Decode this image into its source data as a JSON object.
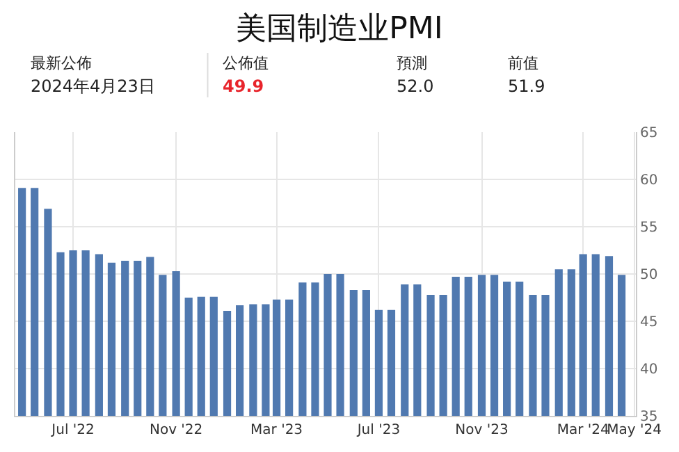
{
  "chart_data": {
    "type": "bar",
    "title": "美国制造业PMI",
    "annotations": [
      "最新公佈",
      "2024年4月23日",
      "公佈值",
      "49.9",
      "預測",
      "52.0",
      "前值",
      "51.9"
    ],
    "x": [
      "2022-05-01",
      "2022-05-16",
      "2022-06-01",
      "2022-06-16",
      "2022-07-01",
      "2022-07-16",
      "2022-08-01",
      "2022-08-16",
      "2022-09-01",
      "2022-09-16",
      "2022-10-01",
      "2022-10-16",
      "2022-11-01",
      "2022-11-16",
      "2022-12-01",
      "2022-12-16",
      "2023-01-01",
      "2023-01-16",
      "2023-02-01",
      "2023-02-16",
      "2023-03-01",
      "2023-03-16",
      "2023-04-01",
      "2023-04-16",
      "2023-05-01",
      "2023-05-16",
      "2023-06-01",
      "2023-06-16",
      "2023-07-01",
      "2023-07-16",
      "2023-08-01",
      "2023-08-16",
      "2023-09-01",
      "2023-09-16",
      "2023-10-01",
      "2023-10-16",
      "2023-11-01",
      "2023-11-16",
      "2023-12-01",
      "2023-12-16",
      "2024-01-01",
      "2024-01-16",
      "2024-02-01",
      "2024-02-16",
      "2024-03-01",
      "2024-03-16",
      "2024-04-01",
      "2024-04-16"
    ],
    "values": [
      59.1,
      59.1,
      56.9,
      52.3,
      52.5,
      52.5,
      52.1,
      51.2,
      51.4,
      51.4,
      51.8,
      49.9,
      50.3,
      47.5,
      47.6,
      47.6,
      46.1,
      46.7,
      46.8,
      46.8,
      47.3,
      47.3,
      49.1,
      49.1,
      50.0,
      50.0,
      48.3,
      48.3,
      46.2,
      46.2,
      48.9,
      48.9,
      47.8,
      47.8,
      49.7,
      49.7,
      49.9,
      49.9,
      49.2,
      49.2,
      47.8,
      47.8,
      50.5,
      50.5,
      52.1,
      52.1,
      51.9,
      49.9
    ],
    "color": "#5079b0",
    "xlim": [
      "2022-04-23",
      "2024-05-03"
    ],
    "xticks": [
      {
        "value": "2022-07-01",
        "label": "Jul '22"
      },
      {
        "value": "2022-11-01",
        "label": "Nov '22"
      },
      {
        "value": "2023-03-01",
        "label": "Mar '23"
      },
      {
        "value": "2023-07-01",
        "label": "Jul '23"
      },
      {
        "value": "2023-11-01",
        "label": "Nov '23"
      },
      {
        "value": "2024-03-01",
        "label": "Mar '24"
      },
      {
        "value": "2024-05-01",
        "label": "May '24"
      }
    ],
    "ylim": [
      35,
      65
    ],
    "yticks": [
      35,
      40,
      45,
      50,
      55,
      60,
      65
    ],
    "grid": true,
    "legend": false
  }
}
